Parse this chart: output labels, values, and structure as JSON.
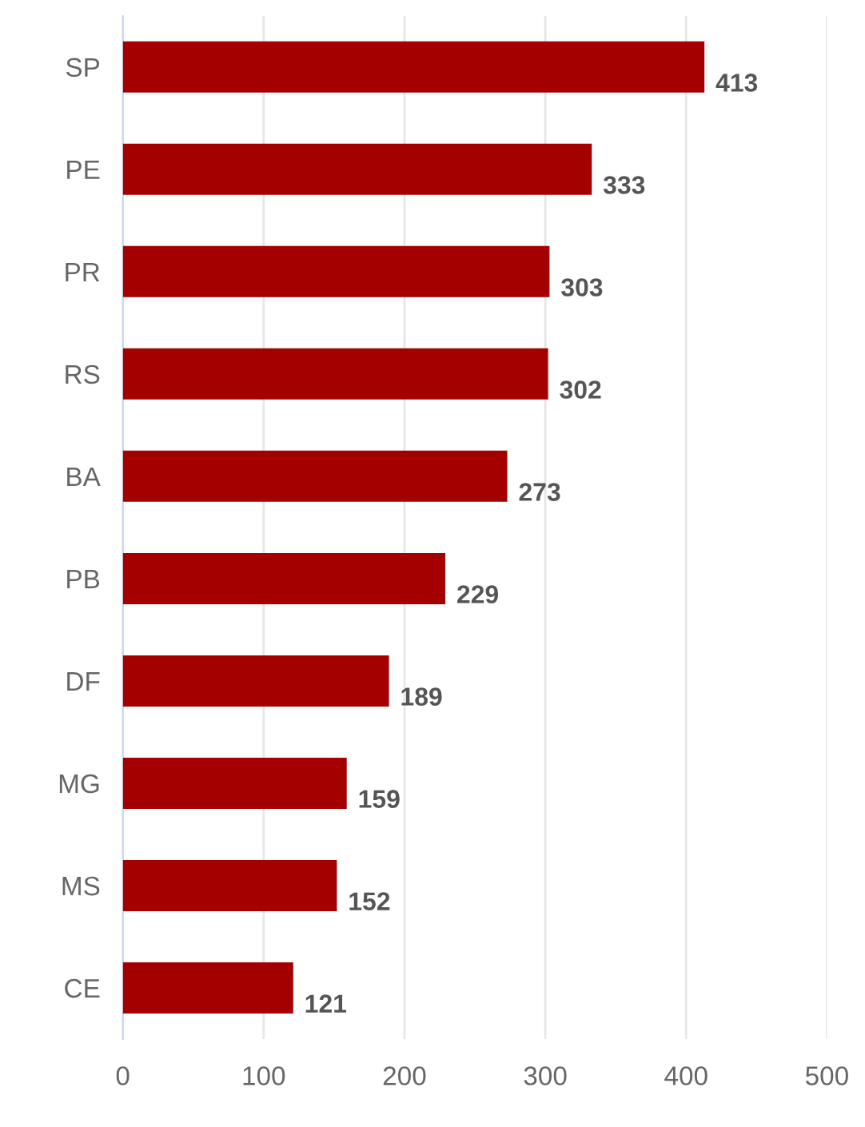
{
  "chart_data": {
    "type": "bar",
    "orientation": "horizontal",
    "categories": [
      "SP",
      "PE",
      "PR",
      "RS",
      "BA",
      "PB",
      "DF",
      "MG",
      "MS",
      "CE"
    ],
    "values": [
      413,
      333,
      303,
      302,
      273,
      229,
      189,
      159,
      152,
      121
    ],
    "color": "#a50000",
    "xlim": [
      0,
      500
    ],
    "xticks": [
      0,
      100,
      200,
      300,
      400,
      500
    ],
    "grid": "x",
    "legend": false,
    "data_labels": true
  }
}
